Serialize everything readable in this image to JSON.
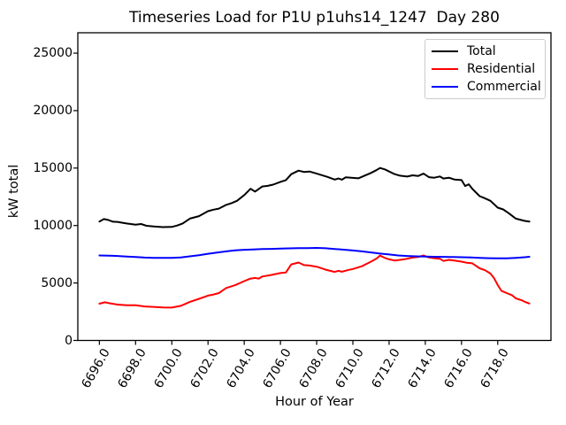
{
  "figure": {
    "background": "#ffffff",
    "spine_color": "#000000"
  },
  "chart_data": {
    "type": "line",
    "title": "Timeseries Load for P1U p1uhs14_1247  Day 280",
    "xlabel": "Hour of Year",
    "ylabel": "kW total",
    "xlim": [
      6694.81,
      6720.94
    ],
    "ylim": [
      0,
      26775
    ],
    "grid": false,
    "legend_position": "upper right",
    "xticks": [
      {
        "v": 6696,
        "label": "6696.0"
      },
      {
        "v": 6698,
        "label": "6698.0"
      },
      {
        "v": 6700,
        "label": "6700.0"
      },
      {
        "v": 6702,
        "label": "6702.0"
      },
      {
        "v": 6704,
        "label": "6704.0"
      },
      {
        "v": 6706,
        "label": "6706.0"
      },
      {
        "v": 6708,
        "label": "6708.0"
      },
      {
        "v": 6710,
        "label": "6710.0"
      },
      {
        "v": 6712,
        "label": "6712.0"
      },
      {
        "v": 6714,
        "label": "6714.0"
      },
      {
        "v": 6716,
        "label": "6716.0"
      },
      {
        "v": 6718,
        "label": "6718.0"
      }
    ],
    "yticks": [
      {
        "v": 0,
        "label": "0"
      },
      {
        "v": 5000,
        "label": "5000"
      },
      {
        "v": 10000,
        "label": "10000"
      },
      {
        "v": 15000,
        "label": "15000"
      },
      {
        "v": 20000,
        "label": "20000"
      },
      {
        "v": 25000,
        "label": "25000"
      }
    ],
    "series": [
      {
        "name": "Total",
        "color": "#000000",
        "points": [
          [
            6696,
            10350
          ],
          [
            6696.25,
            10560
          ],
          [
            6696.5,
            10480
          ],
          [
            6696.75,
            10330
          ],
          [
            6697,
            10320
          ],
          [
            6697.5,
            10180
          ],
          [
            6698,
            10070
          ],
          [
            6698.3,
            10130
          ],
          [
            6698.6,
            9980
          ],
          [
            6699,
            9920
          ],
          [
            6699.5,
            9860
          ],
          [
            6700,
            9880
          ],
          [
            6700.3,
            10000
          ],
          [
            6700.6,
            10180
          ],
          [
            6701,
            10600
          ],
          [
            6701.5,
            10820
          ],
          [
            6702,
            11250
          ],
          [
            6702.3,
            11380
          ],
          [
            6702.6,
            11470
          ],
          [
            6703,
            11800
          ],
          [
            6703.3,
            11950
          ],
          [
            6703.6,
            12150
          ],
          [
            6704,
            12650
          ],
          [
            6704.35,
            13200
          ],
          [
            6704.6,
            12950
          ],
          [
            6705,
            13400
          ],
          [
            6705.3,
            13450
          ],
          [
            6705.6,
            13560
          ],
          [
            6706,
            13800
          ],
          [
            6706.3,
            13950
          ],
          [
            6706.6,
            14470
          ],
          [
            6707,
            14780
          ],
          [
            6707.3,
            14660
          ],
          [
            6707.6,
            14700
          ],
          [
            6708,
            14520
          ],
          [
            6708.3,
            14380
          ],
          [
            6708.6,
            14230
          ],
          [
            6709,
            14000
          ],
          [
            6709.2,
            14090
          ],
          [
            6709.4,
            13990
          ],
          [
            6709.6,
            14190
          ],
          [
            6710,
            14150
          ],
          [
            6710.3,
            14110
          ],
          [
            6710.6,
            14310
          ],
          [
            6711,
            14580
          ],
          [
            6711.3,
            14820
          ],
          [
            6711.5,
            15010
          ],
          [
            6711.8,
            14860
          ],
          [
            6712,
            14700
          ],
          [
            6712.3,
            14480
          ],
          [
            6712.6,
            14340
          ],
          [
            6713,
            14260
          ],
          [
            6713.3,
            14370
          ],
          [
            6713.6,
            14310
          ],
          [
            6713.9,
            14520
          ],
          [
            6714.2,
            14210
          ],
          [
            6714.5,
            14160
          ],
          [
            6714.8,
            14270
          ],
          [
            6715,
            14090
          ],
          [
            6715.3,
            14160
          ],
          [
            6715.6,
            14010
          ],
          [
            6716,
            13950
          ],
          [
            6716.2,
            13440
          ],
          [
            6716.4,
            13590
          ],
          [
            6716.6,
            13190
          ],
          [
            6717,
            12560
          ],
          [
            6717.3,
            12360
          ],
          [
            6717.6,
            12150
          ],
          [
            6718,
            11560
          ],
          [
            6718.3,
            11400
          ],
          [
            6718.6,
            11080
          ],
          [
            6719,
            10600
          ],
          [
            6719.3,
            10480
          ],
          [
            6719.5,
            10400
          ],
          [
            6719.75,
            10350
          ]
        ]
      },
      {
        "name": "Residential",
        "color": "#ff0000",
        "points": [
          [
            6696,
            3200
          ],
          [
            6696.3,
            3320
          ],
          [
            6696.6,
            3230
          ],
          [
            6697,
            3120
          ],
          [
            6697.5,
            3060
          ],
          [
            6698,
            3060
          ],
          [
            6698.5,
            2960
          ],
          [
            6699,
            2920
          ],
          [
            6699.5,
            2870
          ],
          [
            6700,
            2860
          ],
          [
            6700.5,
            3010
          ],
          [
            6701,
            3360
          ],
          [
            6701.5,
            3620
          ],
          [
            6702,
            3900
          ],
          [
            6702.3,
            4000
          ],
          [
            6702.6,
            4120
          ],
          [
            6703,
            4560
          ],
          [
            6703.5,
            4810
          ],
          [
            6704,
            5160
          ],
          [
            6704.3,
            5360
          ],
          [
            6704.6,
            5440
          ],
          [
            6704.8,
            5380
          ],
          [
            6705,
            5560
          ],
          [
            6705.5,
            5700
          ],
          [
            6706,
            5860
          ],
          [
            6706.3,
            5920
          ],
          [
            6706.6,
            6620
          ],
          [
            6707,
            6780
          ],
          [
            6707.3,
            6560
          ],
          [
            6707.6,
            6520
          ],
          [
            6708,
            6420
          ],
          [
            6708.5,
            6160
          ],
          [
            6709,
            5960
          ],
          [
            6709.2,
            6060
          ],
          [
            6709.4,
            5980
          ],
          [
            6709.7,
            6110
          ],
          [
            6710,
            6220
          ],
          [
            6710.5,
            6460
          ],
          [
            6711,
            6860
          ],
          [
            6711.3,
            7120
          ],
          [
            6711.5,
            7380
          ],
          [
            6711.8,
            7160
          ],
          [
            6712,
            7060
          ],
          [
            6712.3,
            6960
          ],
          [
            6712.6,
            7010
          ],
          [
            6713,
            7110
          ],
          [
            6713.3,
            7210
          ],
          [
            6713.6,
            7260
          ],
          [
            6713.9,
            7400
          ],
          [
            6714.2,
            7220
          ],
          [
            6714.5,
            7160
          ],
          [
            6714.8,
            7110
          ],
          [
            6715,
            6920
          ],
          [
            6715.3,
            7010
          ],
          [
            6715.6,
            6960
          ],
          [
            6716,
            6860
          ],
          [
            6716.3,
            6760
          ],
          [
            6716.6,
            6710
          ],
          [
            6717,
            6280
          ],
          [
            6717.3,
            6110
          ],
          [
            6717.6,
            5820
          ],
          [
            6717.8,
            5420
          ],
          [
            6718,
            4820
          ],
          [
            6718.2,
            4320
          ],
          [
            6718.5,
            4120
          ],
          [
            6718.8,
            3920
          ],
          [
            6719,
            3660
          ],
          [
            6719.3,
            3510
          ],
          [
            6719.5,
            3360
          ],
          [
            6719.75,
            3210
          ]
        ]
      },
      {
        "name": "Commercial",
        "color": "#0000ff",
        "points": [
          [
            6696,
            7400
          ],
          [
            6696.5,
            7380
          ],
          [
            6697,
            7350
          ],
          [
            6697.5,
            7300
          ],
          [
            6698,
            7260
          ],
          [
            6698.5,
            7210
          ],
          [
            6699,
            7190
          ],
          [
            6699.5,
            7180
          ],
          [
            6700,
            7190
          ],
          [
            6700.5,
            7230
          ],
          [
            6701,
            7320
          ],
          [
            6701.5,
            7420
          ],
          [
            6702,
            7540
          ],
          [
            6702.5,
            7650
          ],
          [
            6703,
            7750
          ],
          [
            6703.5,
            7840
          ],
          [
            6704,
            7890
          ],
          [
            6704.5,
            7920
          ],
          [
            6705,
            7950
          ],
          [
            6705.5,
            7970
          ],
          [
            6706,
            7990
          ],
          [
            6706.5,
            8010
          ],
          [
            6707,
            8030
          ],
          [
            6707.5,
            8040
          ],
          [
            6708,
            8050
          ],
          [
            6708.5,
            8020
          ],
          [
            6709,
            7960
          ],
          [
            6709.5,
            7900
          ],
          [
            6710,
            7830
          ],
          [
            6710.5,
            7750
          ],
          [
            6711,
            7660
          ],
          [
            6711.5,
            7560
          ],
          [
            6712,
            7480
          ],
          [
            6712.5,
            7400
          ],
          [
            6713,
            7350
          ],
          [
            6713.5,
            7320
          ],
          [
            6714,
            7300
          ],
          [
            6714.5,
            7280
          ],
          [
            6715,
            7270
          ],
          [
            6715.5,
            7260
          ],
          [
            6716,
            7240
          ],
          [
            6716.5,
            7220
          ],
          [
            6717,
            7190
          ],
          [
            6717.5,
            7160
          ],
          [
            6718,
            7140
          ],
          [
            6718.5,
            7150
          ],
          [
            6719,
            7190
          ],
          [
            6719.5,
            7240
          ],
          [
            6719.75,
            7280
          ]
        ]
      }
    ]
  }
}
